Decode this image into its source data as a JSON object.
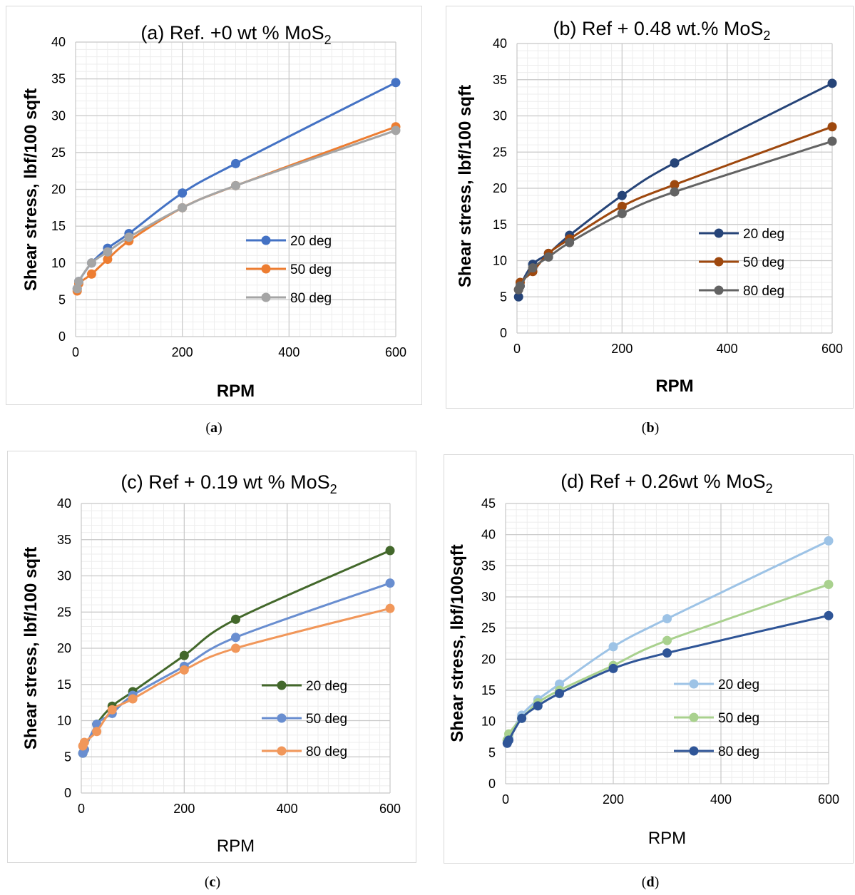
{
  "figures": [
    {
      "caption_letter": "a",
      "chart_data": {
        "type": "line",
        "title_main": "(a) Ref. +0 wt % MoS",
        "title_sub": "2",
        "xlabel": "RPM",
        "ylabel": "Shear stress, lbf/100 sqft",
        "xlabel_bold": true,
        "xlim": [
          0,
          600
        ],
        "ylim": [
          0,
          40
        ],
        "x_ticks": [
          0,
          200,
          400,
          600
        ],
        "y_ticks": [
          0,
          5,
          10,
          15,
          20,
          25,
          30,
          35,
          40
        ],
        "x_tick_labels": [
          "0",
          "200",
          "400",
          "600"
        ],
        "y_tick_labels": [
          "0",
          "5",
          "10",
          "15",
          "20",
          "25",
          "30",
          "35",
          "40"
        ],
        "x_minor_step": 20,
        "y_minor_step": 1,
        "grid": true,
        "legend_position": "center-right",
        "x": [
          3,
          6,
          30,
          60,
          100,
          200,
          300,
          600
        ],
        "series": [
          {
            "name": "20 deg",
            "color": "#4472c4",
            "values": [
              6.5,
              7.5,
              10,
              12,
              14,
              19.5,
              23.5,
              34.5
            ]
          },
          {
            "name": "50 deg",
            "color": "#ed7d31",
            "values": [
              6.2,
              7.2,
              8.5,
              10.5,
              13,
              17.5,
              20.5,
              28.5
            ]
          },
          {
            "name": "80 deg",
            "color": "#a5a5a5",
            "values": [
              6.5,
              7.5,
              10,
              11.5,
              13.5,
              17.5,
              20.5,
              28
            ]
          }
        ]
      }
    },
    {
      "caption_letter": "b",
      "chart_data": {
        "type": "line",
        "title_main": "(b) Ref + 0.48 wt.% MoS",
        "title_sub": "2",
        "xlabel": "RPM",
        "ylabel": "Shear stress, lbf/100 sqft",
        "xlabel_bold": true,
        "xlim": [
          0,
          600
        ],
        "ylim": [
          0,
          40
        ],
        "x_ticks": [
          0,
          200,
          400,
          600
        ],
        "y_ticks": [
          0,
          5,
          10,
          15,
          20,
          25,
          30,
          35,
          40
        ],
        "x_tick_labels": [
          "0",
          "200",
          "400",
          "600"
        ],
        "y_tick_labels": [
          "0",
          "5",
          "10",
          "15",
          "20",
          "25",
          "30",
          "35",
          "40"
        ],
        "x_minor_step": 20,
        "y_minor_step": 1,
        "grid": true,
        "legend_position": "center-right",
        "x": [
          3,
          6,
          30,
          60,
          100,
          200,
          300,
          600
        ],
        "series": [
          {
            "name": "20 deg",
            "color": "#264478",
            "values": [
              5,
              6.5,
              9.5,
              11,
              13.5,
              19,
              23.5,
              34.5
            ]
          },
          {
            "name": "50 deg",
            "color": "#9e480e",
            "values": [
              6,
              7,
              8.5,
              11,
              13,
              17.5,
              20.5,
              28.5
            ]
          },
          {
            "name": "80 deg",
            "color": "#636363",
            "values": [
              6,
              6.5,
              9,
              10.5,
              12.5,
              16.5,
              19.5,
              26.5
            ]
          }
        ]
      }
    },
    {
      "caption_letter": "c",
      "chart_data": {
        "type": "line",
        "title_main": "(c) Ref  + 0.19 wt % MoS",
        "title_sub": "2",
        "xlabel": "RPM",
        "ylabel": "Shear stress, lbf/100 sqft",
        "xlabel_bold": false,
        "xlim": [
          0,
          600
        ],
        "ylim": [
          0,
          40
        ],
        "x_ticks": [
          0,
          200,
          400,
          600
        ],
        "y_ticks": [
          0,
          5,
          10,
          15,
          20,
          25,
          30,
          35,
          40
        ],
        "x_tick_labels": [
          "0",
          "200",
          "400",
          "600"
        ],
        "y_tick_labels": [
          "0",
          "5",
          "10",
          "15",
          "20",
          "25",
          "30",
          "35",
          "40"
        ],
        "x_minor_step": 20,
        "y_minor_step": 1,
        "grid": true,
        "legend_position": "center-right",
        "x": [
          3,
          6,
          30,
          60,
          100,
          200,
          300,
          600
        ],
        "series": [
          {
            "name": "20 deg",
            "color": "#43682b",
            "values": [
              5.5,
              6,
              9.5,
              12,
              14,
              19,
              24,
              33.5
            ]
          },
          {
            "name": "50 deg",
            "color": "#698ed0",
            "values": [
              5.5,
              6,
              9.5,
              11,
              13.5,
              17.5,
              21.5,
              29
            ]
          },
          {
            "name": "80 deg",
            "color": "#f1975a",
            "values": [
              6.5,
              7,
              8.5,
              11.5,
              13,
              17,
              20,
              25.5
            ]
          }
        ]
      }
    },
    {
      "caption_letter": "d",
      "chart_data": {
        "type": "line",
        "title_main": "(d) Ref + 0.26wt % MoS",
        "title_sub": "2",
        "xlabel": "RPM",
        "ylabel": "Shear stress, lbf/100sqft",
        "xlabel_bold": false,
        "xlim": [
          0,
          600
        ],
        "ylim": [
          0,
          45
        ],
        "x_ticks": [
          0,
          200,
          400,
          600
        ],
        "y_ticks": [
          0,
          5,
          10,
          15,
          20,
          25,
          30,
          35,
          40,
          45
        ],
        "x_tick_labels": [
          "0",
          "200",
          "400",
          "600"
        ],
        "y_tick_labels": [
          "0",
          "5",
          "10",
          "15",
          "20",
          "25",
          "30",
          "35",
          "40",
          "45"
        ],
        "x_minor_step": 20,
        "y_minor_step": 1,
        "grid": true,
        "legend_position": "center-right",
        "x": [
          3,
          6,
          30,
          60,
          100,
          200,
          300,
          600
        ],
        "series": [
          {
            "name": "20 deg",
            "color": "#9dc3e6",
            "values": [
              7,
              7.5,
              11,
              13.5,
              16,
              22,
              26.5,
              39
            ]
          },
          {
            "name": "50 deg",
            "color": "#a9d18e",
            "values": [
              7,
              8,
              10.5,
              13,
              15,
              19,
              23,
              32
            ]
          },
          {
            "name": "80 deg",
            "color": "#2f5597",
            "values": [
              6.5,
              7,
              10.5,
              12.5,
              14.5,
              18.5,
              21,
              27
            ]
          }
        ]
      }
    }
  ]
}
